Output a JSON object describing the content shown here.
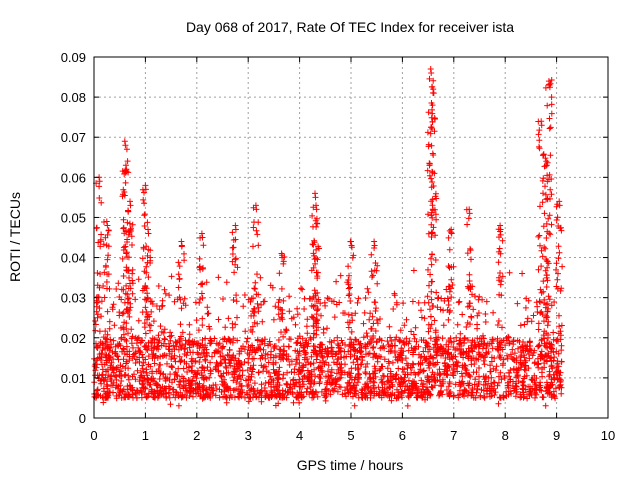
{
  "chart_data": {
    "type": "scatter",
    "title": "Day 068 of 2017, Rate Of TEC Index for receiver ista",
    "xlabel": "GPS time / hours",
    "ylabel": "ROTI / TECUs",
    "xlim": [
      0,
      10
    ],
    "ylim": [
      0,
      0.09
    ],
    "x_ticks": [
      "0",
      "1",
      "2",
      "3",
      "4",
      "5",
      "6",
      "7",
      "8",
      "9",
      "10"
    ],
    "y_ticks": [
      "0",
      "0.01",
      "0.02",
      "0.03",
      "0.04",
      "0.05",
      "0.06",
      "0.07",
      "0.08",
      "0.09"
    ],
    "grid": true,
    "marker": "+",
    "color": "#ff0000",
    "series": [
      {
        "name": "ROTI",
        "baseline_band": [
          0.005,
          0.02
        ],
        "x_range": [
          0,
          9.1
        ],
        "peaks": [
          {
            "x": 0.1,
            "y": 0.06
          },
          {
            "x": 0.25,
            "y": 0.049
          },
          {
            "x": 0.6,
            "y": 0.069
          },
          {
            "x": 0.62,
            "y": 0.063
          },
          {
            "x": 0.7,
            "y": 0.054
          },
          {
            "x": 1.0,
            "y": 0.058
          },
          {
            "x": 1.05,
            "y": 0.047
          },
          {
            "x": 1.7,
            "y": 0.044
          },
          {
            "x": 2.1,
            "y": 0.046
          },
          {
            "x": 2.75,
            "y": 0.048
          },
          {
            "x": 3.15,
            "y": 0.053
          },
          {
            "x": 3.65,
            "y": 0.041
          },
          {
            "x": 4.3,
            "y": 0.056
          },
          {
            "x": 4.32,
            "y": 0.053
          },
          {
            "x": 5.0,
            "y": 0.044
          },
          {
            "x": 5.45,
            "y": 0.044
          },
          {
            "x": 6.55,
            "y": 0.087
          },
          {
            "x": 6.6,
            "y": 0.082
          },
          {
            "x": 6.95,
            "y": 0.047
          },
          {
            "x": 7.3,
            "y": 0.052
          },
          {
            "x": 7.9,
            "y": 0.048
          },
          {
            "x": 8.7,
            "y": 0.074
          },
          {
            "x": 8.8,
            "y": 0.064
          },
          {
            "x": 8.85,
            "y": 0.084
          },
          {
            "x": 9.05,
            "y": 0.054
          }
        ]
      }
    ]
  }
}
